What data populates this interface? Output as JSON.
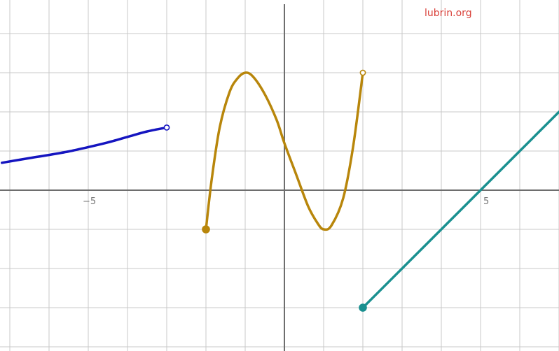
{
  "watermark": {
    "text": "lubrin.org",
    "color": "#d9413a"
  },
  "chart_data": {
    "type": "line",
    "title": "",
    "xlabel": "",
    "ylabel": "",
    "xlim": [
      -7.2,
      7.0
    ],
    "ylim": [
      -4.0,
      4.8
    ],
    "grid": true,
    "x_ticks_labeled": [
      -5,
      5
    ],
    "tick_labels": {
      "x_neg5": "−5",
      "x_5": "5"
    },
    "series": [
      {
        "color": "#1515c0",
        "endpoints": [
          {
            "x": -3,
            "y": 1.6,
            "style": "open"
          }
        ],
        "points": [
          [
            -7.2,
            0.7
          ],
          [
            -6.5,
            0.82
          ],
          [
            -6.0,
            0.9
          ],
          [
            -5.5,
            0.99
          ],
          [
            -5.0,
            1.1
          ],
          [
            -4.5,
            1.22
          ],
          [
            -4.0,
            1.36
          ],
          [
            -3.5,
            1.5
          ],
          [
            -3.0,
            1.6
          ]
        ]
      },
      {
        "color": "#b8860b",
        "endpoints": [
          {
            "x": -2,
            "y": -1,
            "style": "closed"
          },
          {
            "x": 2,
            "y": 3,
            "style": "open"
          }
        ],
        "points": [
          [
            -2.0,
            -1.0
          ],
          [
            -1.85,
            0.3
          ],
          [
            -1.65,
            1.6
          ],
          [
            -1.4,
            2.5
          ],
          [
            -1.2,
            2.85
          ],
          [
            -1.0,
            3.0
          ],
          [
            -0.8,
            2.9
          ],
          [
            -0.5,
            2.45
          ],
          [
            -0.2,
            1.8
          ],
          [
            0.0,
            1.2
          ],
          [
            0.3,
            0.4
          ],
          [
            0.6,
            -0.4
          ],
          [
            0.85,
            -0.85
          ],
          [
            1.0,
            -1.0
          ],
          [
            1.2,
            -0.9
          ],
          [
            1.5,
            -0.2
          ],
          [
            1.75,
            1.1
          ],
          [
            2.0,
            3.0
          ]
        ]
      },
      {
        "color": "#1a9090",
        "endpoints": [
          {
            "x": 2,
            "y": -3,
            "style": "closed"
          }
        ],
        "points": [
          [
            2.0,
            -3.0
          ],
          [
            3.0,
            -2.0
          ],
          [
            4.0,
            -1.0
          ],
          [
            5.0,
            0.0
          ],
          [
            6.0,
            1.0
          ],
          [
            7.0,
            2.0
          ]
        ]
      }
    ]
  }
}
